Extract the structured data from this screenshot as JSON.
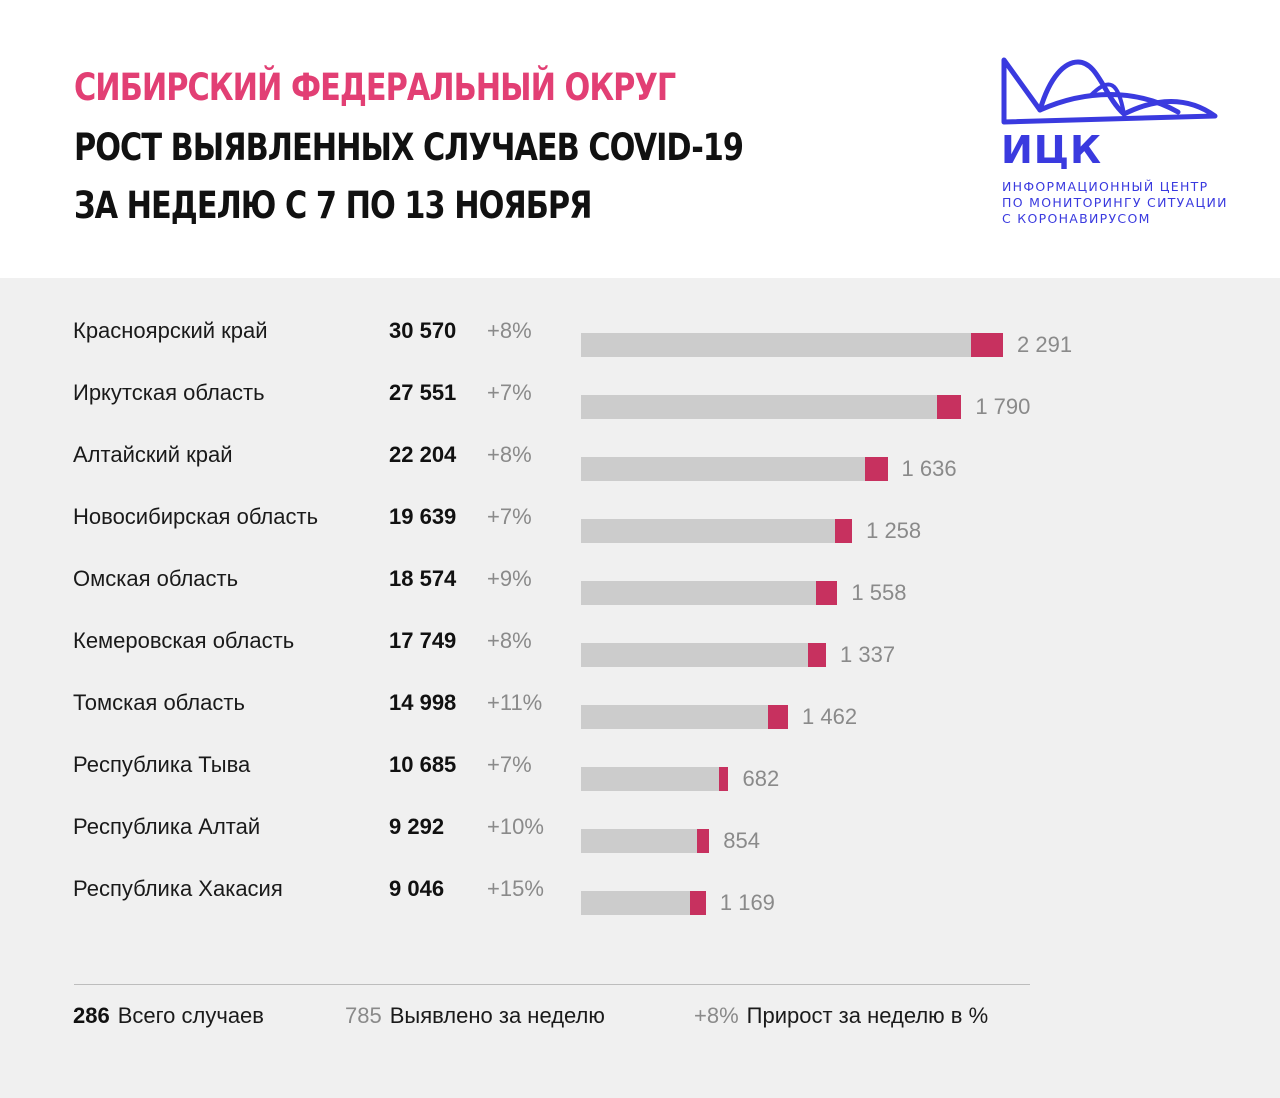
{
  "header": {
    "title_line_1": "СИБИРСКИЙ ФЕДЕРАЛЬНЫЙ ОКРУГ",
    "title_line_2": "РОСТ ВЫЯВЛЕННЫХ СЛУЧАЕВ COVID-19",
    "title_line_3": "ЗА НЕДЕЛЮ С 7 ПО 13 НОЯБРЯ"
  },
  "logo": {
    "word": "ИЦК",
    "sub_1": "ИНФОРМАЦИОННЫЙ ЦЕНТР",
    "sub_2": "ПО МОНИТОРИНГУ СИТУАЦИИ",
    "sub_3": "С КОРОНАВИРУСОМ"
  },
  "colors": {
    "title_accent": "#e23f74",
    "brand": "#3a3adf",
    "bar_base": "#cccccc",
    "bar_weekly": "#c7315f"
  },
  "chart_data": {
    "type": "bar",
    "orientation": "horizontal",
    "stacked": true,
    "categories": [
      "Красноярский край",
      "Иркутская область",
      "Алтайский край",
      "Новосибирская область",
      "Омская область",
      "Кемеровская область",
      "Томская область",
      "Республика Тыва",
      "Республика Алтай",
      "Республика Хакасия"
    ],
    "series": [
      {
        "name": "Всего случаев",
        "values": [
          30570,
          27551,
          22204,
          19639,
          18574,
          17749,
          14998,
          10685,
          9292,
          9046
        ],
        "labels": [
          "30 570",
          "27 551",
          "22 204",
          "19 639",
          "18 574",
          "17 749",
          "14 998",
          "10 685",
          "9 292",
          "9 046"
        ]
      },
      {
        "name": "Выявлено за неделю",
        "values": [
          2291,
          1790,
          1636,
          1258,
          1558,
          1337,
          1462,
          682,
          854,
          1169
        ],
        "labels": [
          "2 291",
          "1 790",
          "1 636",
          "1 258",
          "1 558",
          "1 337",
          "1 462",
          "682",
          "854",
          "1 169"
        ]
      },
      {
        "name": "Прирост за неделю в %",
        "values": [
          8,
          7,
          8,
          7,
          9,
          8,
          11,
          7,
          10,
          15
        ],
        "labels": [
          "+8%",
          "+7%",
          "+8%",
          "+7%",
          "+9%",
          "+8%",
          "+11%",
          "+7%",
          "+10%",
          "+15%"
        ]
      }
    ],
    "legend": [
      {
        "number": "286",
        "label": "Всего случаев"
      },
      {
        "number": "785",
        "label": "Выявлено за неделю"
      },
      {
        "number": "+8%",
        "label": "Прирост за неделю в %"
      }
    ],
    "legend_position": "bottom",
    "grid": false
  }
}
